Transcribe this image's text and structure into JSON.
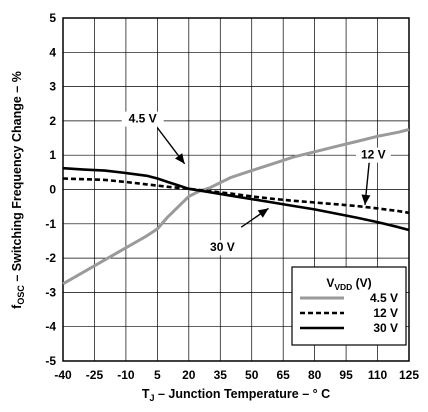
{
  "chart_data": {
    "type": "line",
    "xlabel_main": "T",
    "xlabel_sub": "J",
    "xlabel_rest": " – Junction Temperature – ° C",
    "ylabel_main": "f",
    "ylabel_sub": "OSC",
    "ylabel_rest": " – Switching Frequency Change – %",
    "xlim": [
      -40,
      125
    ],
    "ylim": [
      -5,
      5
    ],
    "x_ticks": [
      -40,
      -25,
      -10,
      5,
      20,
      35,
      50,
      65,
      80,
      95,
      110,
      125
    ],
    "x_tick_labels": [
      "-40",
      "-25",
      "-10",
      "5",
      "20",
      "35",
      "50",
      "65",
      "80",
      "95",
      "110",
      "125"
    ],
    "y_ticks": [
      -5,
      -4,
      -3,
      -2,
      -1,
      0,
      1,
      2,
      3,
      4,
      5
    ],
    "y_tick_labels": [
      "-5",
      "-4",
      "-3",
      "-2",
      "-1",
      "0",
      "1",
      "2",
      "3",
      "4",
      "5"
    ],
    "grid": true,
    "legend": {
      "title_main": "V",
      "title_sub": "VDD",
      "title_rest": " (V)",
      "placement": "bottom-right"
    },
    "series": [
      {
        "name": "4.5 V",
        "color": "#9a9a9a",
        "style": "solid",
        "x": [
          -40,
          -30,
          -20,
          -10,
          0,
          5,
          10,
          15,
          20,
          25,
          30,
          40,
          50,
          60,
          70,
          80,
          90,
          100,
          110,
          120,
          125
        ],
        "y": [
          -2.75,
          -2.4,
          -2.05,
          -1.7,
          -1.35,
          -1.15,
          -0.8,
          -0.5,
          -0.2,
          -0.05,
          0.05,
          0.35,
          0.55,
          0.75,
          0.95,
          1.1,
          1.25,
          1.4,
          1.55,
          1.67,
          1.75
        ]
      },
      {
        "name": "12 V",
        "color": "#000000",
        "style": "dashed",
        "x": [
          -40,
          -30,
          -20,
          -10,
          0,
          10,
          20,
          30,
          40,
          50,
          60,
          70,
          80,
          90,
          100,
          110,
          120,
          125
        ],
        "y": [
          0.32,
          0.3,
          0.28,
          0.22,
          0.15,
          0.08,
          0.02,
          -0.05,
          -0.12,
          -0.2,
          -0.27,
          -0.33,
          -0.38,
          -0.43,
          -0.48,
          -0.55,
          -0.63,
          -0.68
        ]
      },
      {
        "name": "30 V",
        "color": "#000000",
        "style": "solid",
        "x": [
          -40,
          -30,
          -20,
          -10,
          0,
          5,
          10,
          15,
          20,
          30,
          40,
          50,
          60,
          70,
          80,
          90,
          100,
          110,
          120,
          125
        ],
        "y": [
          0.62,
          0.58,
          0.55,
          0.48,
          0.4,
          0.32,
          0.22,
          0.12,
          0.02,
          -0.08,
          -0.18,
          -0.28,
          -0.38,
          -0.48,
          -0.58,
          -0.7,
          -0.82,
          -0.95,
          -1.1,
          -1.18
        ]
      }
    ],
    "annotations": [
      {
        "text": "4.5 V",
        "label_x": -2,
        "label_y": 1.95,
        "arrow_from_x": 5,
        "arrow_from_y": 1.8,
        "arrow_to_x": 18,
        "arrow_to_y": 0.75
      },
      {
        "text": "12 V",
        "label_x": 108,
        "label_y": 0.9,
        "arrow_from_x": 106,
        "arrow_from_y": 0.78,
        "arrow_to_x": 104,
        "arrow_to_y": -0.45
      },
      {
        "text": "30 V",
        "label_x": 36,
        "label_y": -1.8,
        "arrow_from_x": 45,
        "arrow_from_y": -1.1,
        "arrow_to_x": 58,
        "arrow_to_y": -0.55
      }
    ]
  }
}
